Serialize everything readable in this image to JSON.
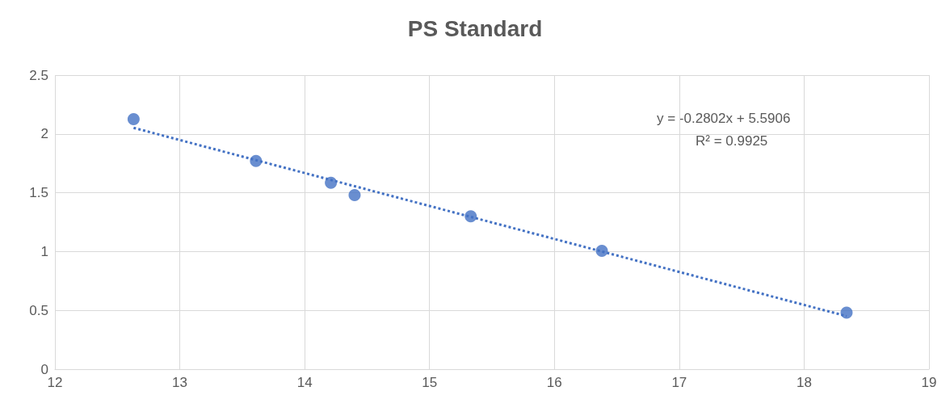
{
  "chart_data": {
    "type": "scatter",
    "title": "PS Standard",
    "grid": true,
    "xlim": [
      12,
      19
    ],
    "xticks": [
      12,
      13,
      14,
      15,
      16,
      17,
      18,
      19
    ],
    "ylim": [
      0,
      2.5
    ],
    "yticks": [
      0,
      0.5,
      1,
      1.5,
      2,
      2.5
    ],
    "series": [
      {
        "marker": "circle",
        "color": "#4472c4",
        "x": [
          12.63,
          13.61,
          14.21,
          14.4,
          15.33,
          16.38,
          18.34
        ],
        "values": [
          2.125,
          1.77,
          1.585,
          1.48,
          1.3,
          1.007,
          0.48
        ]
      },
      {
        "type": "line",
        "marker": "none",
        "color": "#4472c4",
        "line_style": "dotted",
        "x": [
          12.63,
          18.34
        ],
        "values": [
          2.052,
          0.451
        ]
      }
    ],
    "annotations": [
      "y = -0.2802x + 5.5906",
      "R² = 0.9925"
    ]
  }
}
